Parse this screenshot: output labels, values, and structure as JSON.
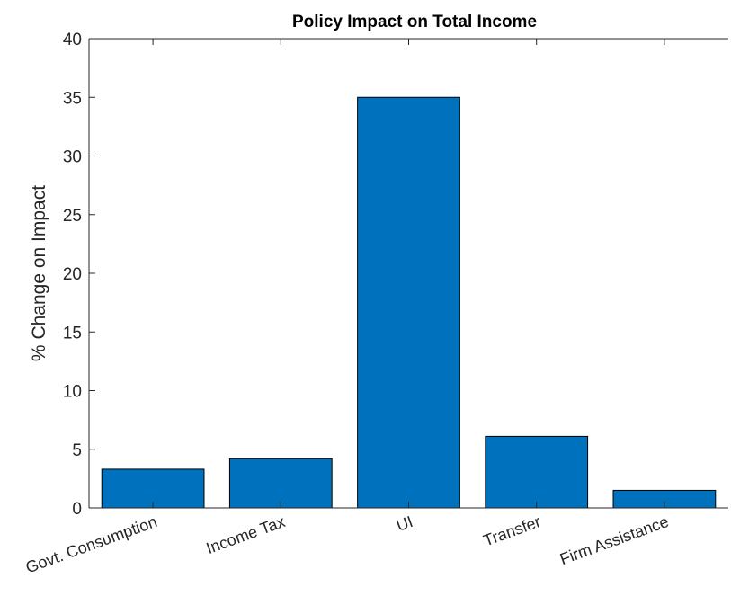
{
  "chart_data": {
    "type": "bar",
    "title": "Policy Impact on Total Income",
    "xlabel": "",
    "ylabel": "% Change on Impact",
    "categories": [
      "Govt. Consumption",
      "Income Tax",
      "UI",
      "Transfer",
      "Firm Assistance"
    ],
    "values": [
      3.3,
      4.2,
      35.0,
      6.1,
      1.5
    ],
    "ylim": [
      0,
      40
    ],
    "yticks": [
      0,
      5,
      10,
      15,
      20,
      25,
      30,
      35,
      40
    ],
    "grid": false,
    "bar_color": "#0072BD",
    "bar_edge_color": "#000000",
    "axis_color": "#262626"
  }
}
